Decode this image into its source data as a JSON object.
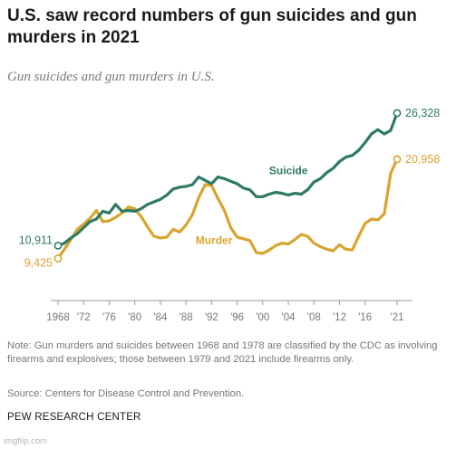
{
  "header": {
    "title": "U.S. saw record numbers of gun suicides and gun murders in 2021",
    "subtitle": "Gun suicides and gun murders in U.S."
  },
  "footer": {
    "note": "Note: Gun murders and suicides between 1968 and 1978 are classified by the CDC as involving firearms and explosives; those between 1979 and 2021 include firearms only.",
    "source": "Source: Centers for Disease Control and Prevention.",
    "brand": "PEW RESEARCH CENTER",
    "watermark": "imgflip.com"
  },
  "colors": {
    "suicide": "#2e7a62",
    "murder": "#d9a42e",
    "axis": "#999999"
  },
  "chart_data": {
    "type": "line",
    "title": "U.S. saw record numbers of gun suicides and gun murders in 2021",
    "subtitle": "Gun suicides and gun murders in U.S.",
    "xlim": [
      1968,
      2021
    ],
    "ylim": [
      0,
      30000
    ],
    "grid": false,
    "legend": "inline labels",
    "x_ticks": [
      {
        "value": 1968,
        "label": "1968"
      },
      {
        "value": 1972,
        "label": "'72"
      },
      {
        "value": 1976,
        "label": "'76"
      },
      {
        "value": 1980,
        "label": "'80"
      },
      {
        "value": 1984,
        "label": "'84"
      },
      {
        "value": 1988,
        "label": "'88"
      },
      {
        "value": 1992,
        "label": "'92"
      },
      {
        "value": 1996,
        "label": "'96"
      },
      {
        "value": 2000,
        "label": "'00"
      },
      {
        "value": 2004,
        "label": "'04"
      },
      {
        "value": 2008,
        "label": "'08"
      },
      {
        "value": 2012,
        "label": "'12"
      },
      {
        "value": 2016,
        "label": "'16"
      },
      {
        "value": 2021,
        "label": "'21"
      }
    ],
    "x": [
      1968,
      1969,
      1970,
      1971,
      1972,
      1973,
      1974,
      1975,
      1976,
      1977,
      1978,
      1979,
      1980,
      1981,
      1982,
      1983,
      1984,
      1985,
      1986,
      1987,
      1988,
      1989,
      1990,
      1991,
      1992,
      1993,
      1994,
      1995,
      1996,
      1997,
      1998,
      1999,
      2000,
      2001,
      2002,
      2003,
      2004,
      2005,
      2006,
      2007,
      2008,
      2009,
      2010,
      2011,
      2012,
      2013,
      2014,
      2015,
      2016,
      2017,
      2018,
      2019,
      2020,
      2021
    ],
    "series": [
      {
        "name": "Suicide",
        "values": [
          10911,
          11200,
          11800,
          12300,
          13000,
          13700,
          14000,
          14900,
          14700,
          15700,
          14900,
          15000,
          14900,
          15200,
          15700,
          16000,
          16300,
          16800,
          17500,
          17700,
          17800,
          18000,
          18900,
          18500,
          18100,
          18900,
          18700,
          18400,
          18100,
          17600,
          17400,
          16600,
          16600,
          16900,
          17100,
          17000,
          16800,
          17000,
          16900,
          17400,
          18300,
          18700,
          19400,
          19900,
          20700,
          21200,
          21400,
          22000,
          22900,
          23900,
          24400,
          23900,
          24300,
          26328
        ]
      },
      {
        "name": "Murder",
        "values": [
          9425,
          10500,
          11600,
          12800,
          13400,
          14100,
          15000,
          13700,
          13800,
          14200,
          14700,
          15400,
          15200,
          14300,
          13100,
          12000,
          11800,
          11900,
          12800,
          12500,
          13300,
          14500,
          16500,
          18000,
          17900,
          16400,
          15000,
          13000,
          11900,
          11700,
          11500,
          10100,
          10000,
          10400,
          10900,
          11200,
          11100,
          11600,
          12200,
          12000,
          11200,
          10800,
          10500,
          10300,
          11000,
          10500,
          10400,
          12000,
          13500,
          14000,
          13900,
          14600,
          19300,
          20958
        ]
      }
    ],
    "end_labels": {
      "suicide_start": "10,911",
      "suicide_end": "26,328",
      "murder_start": "9,425",
      "murder_end": "20,958"
    },
    "series_labels": {
      "suicide": "Suicide",
      "murder": "Murder"
    }
  }
}
